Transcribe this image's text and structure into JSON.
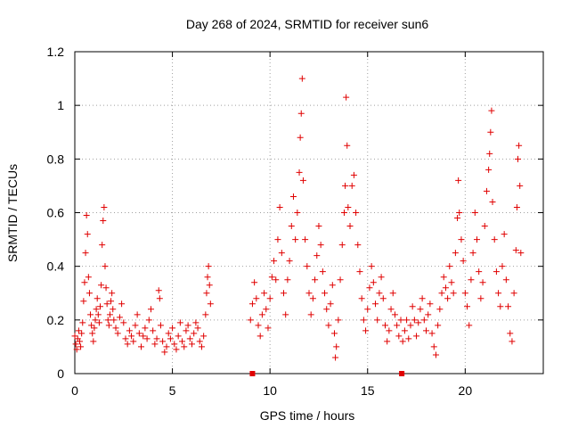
{
  "chart_data": {
    "type": "scatter",
    "title": "Day 268 of 2024, SRMTID for receiver sun6",
    "xlabel": "GPS time / hours",
    "ylabel": "SRMTID / TECUs",
    "xlim": [
      0,
      24
    ],
    "ylim": [
      0,
      1.2
    ],
    "x_ticks": [
      0,
      5,
      10,
      15,
      20
    ],
    "x_tick_labels": [
      "0",
      "5",
      "10",
      "15",
      "20"
    ],
    "y_ticks": [
      0,
      0.2,
      0.4,
      0.6,
      0.8,
      1,
      1.2
    ],
    "y_tick_labels": [
      "0",
      "0.2",
      "0.4",
      "0.6",
      "0.8",
      "1",
      "1.2"
    ],
    "grid": true,
    "marker": "plus",
    "series_color": "#e00000",
    "data_gaps_hours": [
      [
        7.0,
        9.0
      ]
    ],
    "gap_markers_x": [
      9.1,
      16.75
    ],
    "series": [
      {
        "name": "SRMTID",
        "points": [
          [
            0.0,
            0.14
          ],
          [
            0.05,
            0.11
          ],
          [
            0.1,
            0.09
          ],
          [
            0.15,
            0.13
          ],
          [
            0.2,
            0.16
          ],
          [
            0.25,
            0.12
          ],
          [
            0.3,
            0.1
          ],
          [
            0.35,
            0.15
          ],
          [
            0.4,
            0.19
          ],
          [
            0.45,
            0.27
          ],
          [
            0.5,
            0.34
          ],
          [
            0.55,
            0.45
          ],
          [
            0.6,
            0.59
          ],
          [
            0.65,
            0.52
          ],
          [
            0.7,
            0.36
          ],
          [
            0.75,
            0.3
          ],
          [
            0.8,
            0.22
          ],
          [
            0.85,
            0.18
          ],
          [
            0.9,
            0.15
          ],
          [
            0.95,
            0.12
          ],
          [
            1.0,
            0.17
          ],
          [
            1.05,
            0.2
          ],
          [
            1.1,
            0.24
          ],
          [
            1.15,
            0.28
          ],
          [
            1.2,
            0.22
          ],
          [
            1.25,
            0.19
          ],
          [
            1.3,
            0.25
          ],
          [
            1.35,
            0.33
          ],
          [
            1.4,
            0.48
          ],
          [
            1.45,
            0.57
          ],
          [
            1.5,
            0.62
          ],
          [
            1.55,
            0.4
          ],
          [
            1.6,
            0.32
          ],
          [
            1.65,
            0.26
          ],
          [
            1.7,
            0.2
          ],
          [
            1.75,
            0.18
          ],
          [
            1.8,
            0.22
          ],
          [
            1.85,
            0.27
          ],
          [
            1.9,
            0.3
          ],
          [
            1.95,
            0.24
          ],
          [
            2.0,
            0.2
          ],
          [
            2.1,
            0.17
          ],
          [
            2.2,
            0.15
          ],
          [
            2.3,
            0.21
          ],
          [
            2.4,
            0.26
          ],
          [
            2.5,
            0.19
          ],
          [
            2.6,
            0.13
          ],
          [
            2.7,
            0.11
          ],
          [
            2.8,
            0.16
          ],
          [
            2.9,
            0.14
          ],
          [
            3.0,
            0.12
          ],
          [
            3.1,
            0.18
          ],
          [
            3.2,
            0.22
          ],
          [
            3.3,
            0.15
          ],
          [
            3.4,
            0.1
          ],
          [
            3.5,
            0.14
          ],
          [
            3.6,
            0.17
          ],
          [
            3.7,
            0.13
          ],
          [
            3.8,
            0.2
          ],
          [
            3.9,
            0.24
          ],
          [
            4.0,
            0.16
          ],
          [
            4.1,
            0.11
          ],
          [
            4.2,
            0.13
          ],
          [
            4.3,
            0.31
          ],
          [
            4.35,
            0.28
          ],
          [
            4.4,
            0.18
          ],
          [
            4.5,
            0.12
          ],
          [
            4.6,
            0.08
          ],
          [
            4.7,
            0.1
          ],
          [
            4.8,
            0.15
          ],
          [
            4.9,
            0.13
          ],
          [
            5.0,
            0.17
          ],
          [
            5.1,
            0.11
          ],
          [
            5.2,
            0.09
          ],
          [
            5.3,
            0.14
          ],
          [
            5.4,
            0.19
          ],
          [
            5.5,
            0.12
          ],
          [
            5.6,
            0.1
          ],
          [
            5.7,
            0.16
          ],
          [
            5.8,
            0.18
          ],
          [
            5.9,
            0.13
          ],
          [
            6.0,
            0.11
          ],
          [
            6.1,
            0.15
          ],
          [
            6.2,
            0.19
          ],
          [
            6.3,
            0.17
          ],
          [
            6.4,
            0.12
          ],
          [
            6.5,
            0.1
          ],
          [
            6.6,
            0.14
          ],
          [
            6.7,
            0.22
          ],
          [
            6.75,
            0.3
          ],
          [
            6.8,
            0.36
          ],
          [
            6.85,
            0.4
          ],
          [
            6.9,
            0.33
          ],
          [
            6.95,
            0.26
          ],
          [
            9.0,
            0.2
          ],
          [
            9.1,
            0.26
          ],
          [
            9.2,
            0.34
          ],
          [
            9.3,
            0.28
          ],
          [
            9.4,
            0.18
          ],
          [
            9.5,
            0.14
          ],
          [
            9.6,
            0.22
          ],
          [
            9.7,
            0.3
          ],
          [
            9.8,
            0.24
          ],
          [
            9.9,
            0.17
          ],
          [
            10.0,
            0.28
          ],
          [
            10.1,
            0.36
          ],
          [
            10.2,
            0.42
          ],
          [
            10.3,
            0.35
          ],
          [
            10.4,
            0.5
          ],
          [
            10.5,
            0.62
          ],
          [
            10.6,
            0.45
          ],
          [
            10.7,
            0.3
          ],
          [
            10.8,
            0.22
          ],
          [
            10.9,
            0.35
          ],
          [
            11.0,
            0.42
          ],
          [
            11.1,
            0.55
          ],
          [
            11.2,
            0.66
          ],
          [
            11.3,
            0.5
          ],
          [
            11.4,
            0.6
          ],
          [
            11.5,
            0.75
          ],
          [
            11.55,
            0.88
          ],
          [
            11.6,
            0.97
          ],
          [
            11.65,
            1.1
          ],
          [
            11.7,
            0.72
          ],
          [
            11.8,
            0.5
          ],
          [
            11.9,
            0.4
          ],
          [
            12.0,
            0.3
          ],
          [
            12.1,
            0.22
          ],
          [
            12.2,
            0.28
          ],
          [
            12.3,
            0.35
          ],
          [
            12.4,
            0.44
          ],
          [
            12.5,
            0.55
          ],
          [
            12.6,
            0.48
          ],
          [
            12.7,
            0.38
          ],
          [
            12.8,
            0.3
          ],
          [
            12.9,
            0.24
          ],
          [
            13.0,
            0.18
          ],
          [
            13.1,
            0.26
          ],
          [
            13.2,
            0.33
          ],
          [
            13.3,
            0.15
          ],
          [
            13.35,
            0.06
          ],
          [
            13.4,
            0.1
          ],
          [
            13.5,
            0.2
          ],
          [
            13.6,
            0.35
          ],
          [
            13.7,
            0.48
          ],
          [
            13.8,
            0.6
          ],
          [
            13.85,
            0.7
          ],
          [
            13.9,
            1.03
          ],
          [
            13.95,
            0.85
          ],
          [
            14.0,
            0.62
          ],
          [
            14.1,
            0.55
          ],
          [
            14.2,
            0.7
          ],
          [
            14.3,
            0.74
          ],
          [
            14.4,
            0.6
          ],
          [
            14.5,
            0.48
          ],
          [
            14.6,
            0.38
          ],
          [
            14.7,
            0.28
          ],
          [
            14.8,
            0.2
          ],
          [
            14.9,
            0.16
          ],
          [
            15.0,
            0.24
          ],
          [
            15.1,
            0.32
          ],
          [
            15.2,
            0.4
          ],
          [
            15.3,
            0.34
          ],
          [
            15.4,
            0.26
          ],
          [
            15.5,
            0.2
          ],
          [
            15.6,
            0.3
          ],
          [
            15.7,
            0.36
          ],
          [
            15.8,
            0.28
          ],
          [
            15.9,
            0.18
          ],
          [
            16.0,
            0.12
          ],
          [
            16.1,
            0.16
          ],
          [
            16.2,
            0.24
          ],
          [
            16.3,
            0.3
          ],
          [
            16.4,
            0.22
          ],
          [
            16.5,
            0.18
          ],
          [
            16.6,
            0.14
          ],
          [
            16.7,
            0.2
          ],
          [
            16.8,
            0.12
          ],
          [
            16.9,
            0.16
          ],
          [
            17.0,
            0.2
          ],
          [
            17.1,
            0.13
          ],
          [
            17.2,
            0.18
          ],
          [
            17.3,
            0.25
          ],
          [
            17.4,
            0.2
          ],
          [
            17.5,
            0.14
          ],
          [
            17.6,
            0.19
          ],
          [
            17.7,
            0.24
          ],
          [
            17.8,
            0.28
          ],
          [
            17.9,
            0.2
          ],
          [
            18.0,
            0.16
          ],
          [
            18.1,
            0.22
          ],
          [
            18.2,
            0.26
          ],
          [
            18.3,
            0.15
          ],
          [
            18.4,
            0.1
          ],
          [
            18.5,
            0.07
          ],
          [
            18.6,
            0.18
          ],
          [
            18.7,
            0.24
          ],
          [
            18.8,
            0.3
          ],
          [
            18.9,
            0.36
          ],
          [
            19.0,
            0.32
          ],
          [
            19.1,
            0.28
          ],
          [
            19.2,
            0.4
          ],
          [
            19.3,
            0.34
          ],
          [
            19.4,
            0.3
          ],
          [
            19.5,
            0.45
          ],
          [
            19.6,
            0.58
          ],
          [
            19.65,
            0.72
          ],
          [
            19.7,
            0.6
          ],
          [
            19.8,
            0.5
          ],
          [
            19.9,
            0.42
          ],
          [
            20.0,
            0.3
          ],
          [
            20.1,
            0.25
          ],
          [
            20.2,
            0.18
          ],
          [
            20.3,
            0.35
          ],
          [
            20.4,
            0.45
          ],
          [
            20.5,
            0.6
          ],
          [
            20.6,
            0.5
          ],
          [
            20.7,
            0.38
          ],
          [
            20.8,
            0.28
          ],
          [
            20.9,
            0.34
          ],
          [
            21.0,
            0.55
          ],
          [
            21.1,
            0.68
          ],
          [
            21.2,
            0.76
          ],
          [
            21.25,
            0.82
          ],
          [
            21.3,
            0.9
          ],
          [
            21.35,
            0.98
          ],
          [
            21.4,
            0.64
          ],
          [
            21.5,
            0.5
          ],
          [
            21.6,
            0.38
          ],
          [
            21.7,
            0.3
          ],
          [
            21.8,
            0.25
          ],
          [
            21.9,
            0.4
          ],
          [
            22.0,
            0.52
          ],
          [
            22.1,
            0.35
          ],
          [
            22.2,
            0.25
          ],
          [
            22.3,
            0.15
          ],
          [
            22.4,
            0.12
          ],
          [
            22.5,
            0.3
          ],
          [
            22.6,
            0.46
          ],
          [
            22.65,
            0.62
          ],
          [
            22.7,
            0.8
          ],
          [
            22.75,
            0.85
          ],
          [
            22.8,
            0.7
          ],
          [
            22.85,
            0.45
          ]
        ]
      }
    ]
  }
}
